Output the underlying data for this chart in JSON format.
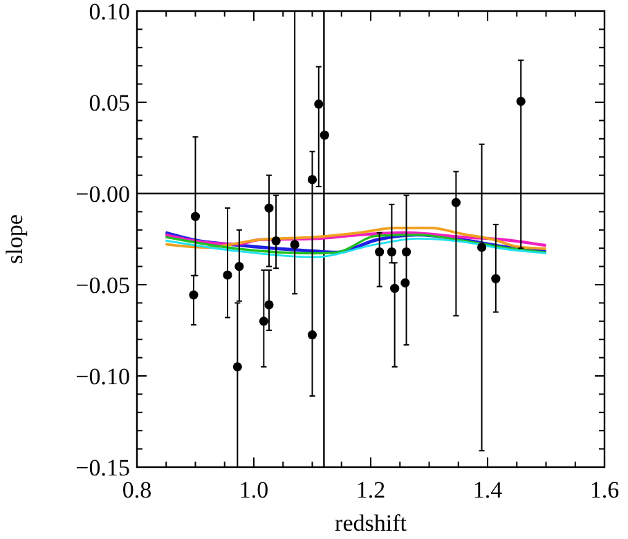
{
  "chart_data": {
    "type": "scatter",
    "xlabel": "redshift",
    "ylabel": "slope",
    "xlim": [
      0.8,
      1.6
    ],
    "ylim": [
      -0.15,
      0.1
    ],
    "xticks": [
      {
        "value": 0.8,
        "label": "0.8"
      },
      {
        "value": 0.85,
        "label": null
      },
      {
        "value": 0.9,
        "label": null
      },
      {
        "value": 0.95,
        "label": null
      },
      {
        "value": 1.0,
        "label": "1.0"
      },
      {
        "value": 1.05,
        "label": null
      },
      {
        "value": 1.1,
        "label": null
      },
      {
        "value": 1.15,
        "label": null
      },
      {
        "value": 1.2,
        "label": "1.2"
      },
      {
        "value": 1.25,
        "label": null
      },
      {
        "value": 1.3,
        "label": null
      },
      {
        "value": 1.35,
        "label": null
      },
      {
        "value": 1.4,
        "label": "1.4"
      },
      {
        "value": 1.45,
        "label": null
      },
      {
        "value": 1.5,
        "label": null
      },
      {
        "value": 1.55,
        "label": null
      },
      {
        "value": 1.6,
        "label": "1.6"
      }
    ],
    "yticks": [
      {
        "value": 0.1,
        "label": "0.10"
      },
      {
        "value": 0.09,
        "label": null
      },
      {
        "value": 0.08,
        "label": null
      },
      {
        "value": 0.07,
        "label": null
      },
      {
        "value": 0.06,
        "label": null
      },
      {
        "value": 0.05,
        "label": "0.05"
      },
      {
        "value": 0.04,
        "label": null
      },
      {
        "value": 0.03,
        "label": null
      },
      {
        "value": 0.02,
        "label": null
      },
      {
        "value": 0.01,
        "label": null
      },
      {
        "value": 0,
        "label": "−0.00"
      },
      {
        "value": -0.01,
        "label": null
      },
      {
        "value": -0.02,
        "label": null
      },
      {
        "value": -0.03,
        "label": null
      },
      {
        "value": -0.04,
        "label": null
      },
      {
        "value": -0.05,
        "label": "−0.05"
      },
      {
        "value": -0.06,
        "label": null
      },
      {
        "value": -0.07,
        "label": null
      },
      {
        "value": -0.08,
        "label": null
      },
      {
        "value": -0.09,
        "label": null
      },
      {
        "value": -0.1,
        "label": "−0.10"
      },
      {
        "value": -0.11,
        "label": null
      },
      {
        "value": -0.12,
        "label": null
      },
      {
        "value": -0.13,
        "label": null
      },
      {
        "value": -0.14,
        "label": null
      },
      {
        "value": -0.15,
        "label": "−0.15"
      }
    ],
    "grid": false,
    "ref_lines": [
      {
        "axis": "y",
        "value": 0,
        "color": "#000000"
      },
      {
        "axis": "x",
        "value": 1.12,
        "color": "#000000"
      }
    ],
    "series": [
      {
        "type": "line",
        "color": "#2020e0",
        "marker": "none",
        "x": [
          0.849,
          0.895,
          0.972,
          1.103,
          1.141,
          1.211,
          1.28,
          1.357,
          1.427,
          1.5
        ],
        "values": [
          -0.0215,
          -0.0253,
          -0.0283,
          -0.0316,
          -0.0323,
          -0.0253,
          -0.0227,
          -0.0253,
          -0.0291,
          -0.0316
        ]
      },
      {
        "type": "line",
        "color": "#f020c0",
        "marker": "none",
        "x": [
          0.849,
          0.895,
          0.972,
          1.01,
          1.103,
          1.18,
          1.257,
          1.357,
          1.427,
          1.5
        ],
        "values": [
          -0.0227,
          -0.0258,
          -0.0278,
          -0.0253,
          -0.0248,
          -0.0227,
          -0.0215,
          -0.0239,
          -0.0253,
          -0.0285
        ]
      },
      {
        "type": "line",
        "color": "#f0a020",
        "marker": "none",
        "x": [
          0.849,
          0.918,
          1.01,
          1.103,
          1.18,
          1.242,
          1.303,
          1.357,
          1.411,
          1.45,
          1.5
        ],
        "values": [
          -0.0278,
          -0.0296,
          -0.0253,
          -0.0239,
          -0.0215,
          -0.0189,
          -0.0189,
          -0.0222,
          -0.0253,
          -0.0291,
          -0.0303
        ]
      },
      {
        "type": "line",
        "color": "#20c020",
        "marker": "none",
        "x": [
          0.849,
          0.972,
          1.103,
          1.141,
          1.211,
          1.28,
          1.357,
          1.427,
          1.5
        ],
        "values": [
          -0.0239,
          -0.0303,
          -0.0328,
          -0.0323,
          -0.0232,
          -0.0227,
          -0.0258,
          -0.0296,
          -0.0323
        ]
      },
      {
        "type": "line",
        "color": "#20e0f0",
        "marker": "none",
        "x": [
          0.849,
          0.972,
          1.103,
          1.211,
          1.28,
          1.357,
          1.427,
          1.5
        ],
        "values": [
          -0.0258,
          -0.0316,
          -0.0349,
          -0.0278,
          -0.0248,
          -0.0265,
          -0.0303,
          -0.0328
        ]
      },
      {
        "color": "#000000",
        "marker": "circle",
        "x": [
          0.9,
          0.897,
          0.955,
          0.975,
          0.972,
          1.017,
          1.026,
          1.026,
          1.038,
          1.07,
          1.1,
          1.1,
          1.111,
          1.121,
          1.215,
          1.236,
          1.241,
          1.261,
          1.259,
          1.346,
          1.39,
          1.414,
          1.457
        ],
        "values": [
          -0.0126,
          -0.0556,
          -0.0447,
          -0.04,
          -0.095,
          -0.07,
          -0.061,
          -0.008,
          -0.026,
          -0.028,
          0.0076,
          -0.0775,
          0.049,
          0.032,
          -0.032,
          -0.032,
          -0.052,
          -0.032,
          -0.049,
          -0.005,
          -0.0295,
          -0.0467,
          0.0505
        ],
        "errors": [
          [
            -0.045,
            0.031
          ],
          [
            -0.072,
            -0.045
          ],
          [
            -0.068,
            -0.008
          ],
          [
            -0.059,
            -0.02
          ],
          [
            -0.15,
            -0.06
          ],
          [
            -0.095,
            -0.042
          ],
          [
            -0.075,
            -0.042
          ],
          [
            -0.04,
            0.01
          ],
          [
            -0.041,
            -0.001
          ],
          [
            -0.055,
            0.1
          ],
          [
            -0.111,
            0.023
          ],
          null,
          [
            0.0038,
            0.0695
          ],
          null,
          [
            -0.051,
            -0.0215
          ],
          [
            -0.038,
            -0.006
          ],
          [
            -0.095,
            -0.038
          ],
          [
            -0.083,
            -0.001
          ],
          null,
          [
            -0.067,
            0.012
          ],
          [
            -0.141,
            0.027
          ],
          [
            -0.065,
            -0.017
          ],
          [
            -0.03,
            0.073
          ]
        ]
      }
    ]
  }
}
